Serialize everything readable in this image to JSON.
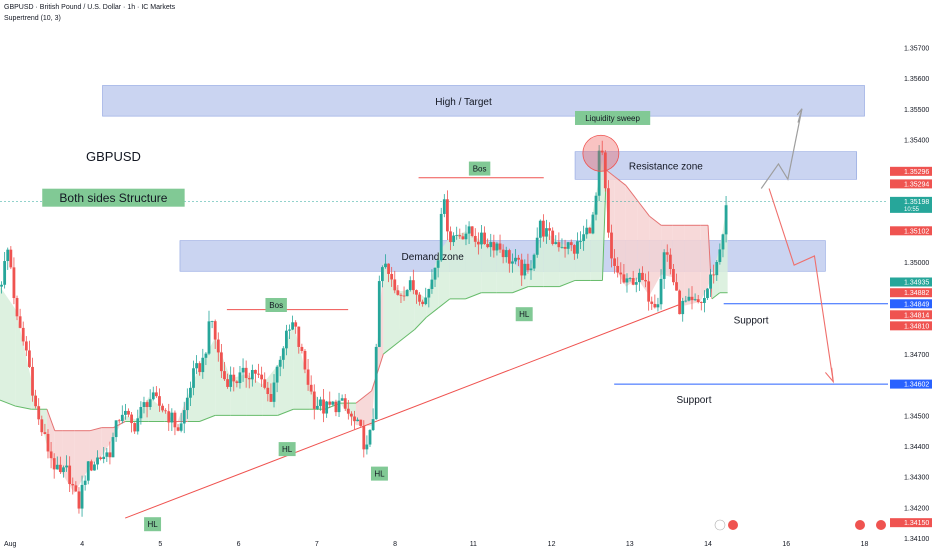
{
  "header": {
    "title": "GBPUSD · British Pound / U.S. Dollar · 1h · IC Markets",
    "indicator": "Supertrend (10, 3)"
  },
  "colors": {
    "up": "#26a69a",
    "down": "#ef5350",
    "zone": "#9fb0e6",
    "trend_up_fill": "#d7eedb",
    "trend_down_fill": "#f6d2d2",
    "label_green": "#81c995",
    "support_line": "#2962ff"
  },
  "chart_data": {
    "type": "candlestick",
    "symbol": "GBPUSD",
    "timeframe": "1h",
    "ylim": [
      1.341,
      1.3577
    ],
    "y_ticks": [
      "1.35700",
      "1.35600",
      "1.35500",
      "1.35400",
      "1.35000",
      "1.34700",
      "1.34500",
      "1.34400",
      "1.34300",
      "1.34200",
      "1.34100"
    ],
    "x_ticks": [
      {
        "label": "Aug",
        "x": 0
      },
      {
        "label": "4",
        "x": 1
      },
      {
        "label": "5",
        "x": 2
      },
      {
        "label": "6",
        "x": 3
      },
      {
        "label": "7",
        "x": 4
      },
      {
        "label": "8",
        "x": 5
      },
      {
        "label": "11",
        "x": 6
      },
      {
        "label": "12",
        "x": 7
      },
      {
        "label": "13",
        "x": 8
      },
      {
        "label": "14",
        "x": 9
      },
      {
        "label": "16",
        "x": 10
      },
      {
        "label": "18",
        "x": 11
      }
    ],
    "x_range": [
      -0.05,
      11.3
    ],
    "last_x": 8.62,
    "anchors": [
      [
        -0.05,
        1.3492
      ],
      [
        0.06,
        1.3505
      ],
      [
        0.17,
        1.348
      ],
      [
        0.3,
        1.347
      ],
      [
        0.42,
        1.345
      ],
      [
        0.55,
        1.344
      ],
      [
        0.7,
        1.343
      ],
      [
        0.82,
        1.3432
      ],
      [
        0.95,
        1.342
      ],
      [
        1.05,
        1.3432
      ],
      [
        1.2,
        1.3436
      ],
      [
        1.35,
        1.3438
      ],
      [
        1.5,
        1.3452
      ],
      [
        1.65,
        1.3446
      ],
      [
        1.85,
        1.3456
      ],
      [
        2.05,
        1.3452
      ],
      [
        2.25,
        1.3445
      ],
      [
        2.4,
        1.3462
      ],
      [
        2.55,
        1.3468
      ],
      [
        2.65,
        1.3482
      ],
      [
        2.8,
        1.3462
      ],
      [
        3.0,
        1.3462
      ],
      [
        3.2,
        1.3465
      ],
      [
        3.4,
        1.3455
      ],
      [
        3.55,
        1.3472
      ],
      [
        3.7,
        1.348
      ],
      [
        3.8,
        1.347
      ],
      [
        3.95,
        1.3455
      ],
      [
        4.1,
        1.3452
      ],
      [
        4.3,
        1.3454
      ],
      [
        4.55,
        1.3445
      ],
      [
        4.65,
        1.3438
      ],
      [
        4.72,
        1.345
      ],
      [
        4.78,
        1.3488
      ],
      [
        4.85,
        1.35
      ],
      [
        5.0,
        1.349
      ],
      [
        5.2,
        1.3492
      ],
      [
        5.4,
        1.3488
      ],
      [
        5.55,
        1.3503
      ],
      [
        5.6,
        1.3522
      ],
      [
        5.7,
        1.3508
      ],
      [
        5.9,
        1.351
      ],
      [
        6.1,
        1.3507
      ],
      [
        6.3,
        1.3506
      ],
      [
        6.5,
        1.35
      ],
      [
        6.7,
        1.3496
      ],
      [
        6.85,
        1.3512
      ],
      [
        7.0,
        1.3507
      ],
      [
        7.15,
        1.3506
      ],
      [
        7.3,
        1.3504
      ],
      [
        7.45,
        1.351
      ],
      [
        7.55,
        1.3515
      ],
      [
        7.62,
        1.3538
      ],
      [
        7.66,
        1.3532
      ],
      [
        7.75,
        1.35
      ],
      [
        7.85,
        1.3497
      ],
      [
        7.95,
        1.3492
      ],
      [
        8.05,
        1.3495
      ],
      [
        8.15,
        1.3494
      ],
      [
        8.25,
        1.3489
      ],
      [
        8.35,
        1.3487
      ],
      [
        8.45,
        1.3505
      ],
      [
        8.55,
        1.3495
      ],
      [
        8.62,
        1.3485
      ],
      [
        8.72,
        1.3486
      ],
      [
        8.85,
        1.3486
      ],
      [
        8.95,
        1.3488
      ],
      [
        9.05,
        1.3496
      ],
      [
        9.12,
        1.35
      ],
      [
        9.2,
        1.3512
      ],
      [
        9.25,
        1.352
      ]
    ],
    "supertrend": [
      [
        -0.05,
        1.3455
      ],
      [
        0.15,
        1.3453
      ],
      [
        0.35,
        1.3452
      ],
      [
        0.55,
        1.3452
      ],
      [
        0.65,
        1.3445
      ],
      [
        0.75,
        1.3445
      ],
      [
        0.9,
        1.3445
      ],
      [
        1.1,
        1.3445
      ],
      [
        1.25,
        1.3446
      ],
      [
        1.4,
        1.3446
      ],
      [
        1.55,
        1.3448
      ],
      [
        1.7,
        1.3448
      ],
      [
        1.85,
        1.3448
      ],
      [
        2.05,
        1.3448
      ],
      [
        2.2,
        1.3448
      ],
      [
        2.35,
        1.3448
      ],
      [
        2.5,
        1.3448
      ],
      [
        2.7,
        1.345
      ],
      [
        2.9,
        1.345
      ],
      [
        3.1,
        1.345
      ],
      [
        3.3,
        1.345
      ],
      [
        3.5,
        1.345
      ],
      [
        3.7,
        1.3452
      ],
      [
        3.9,
        1.3452
      ],
      [
        4.1,
        1.3452
      ],
      [
        4.3,
        1.3454
      ],
      [
        4.5,
        1.3454
      ],
      [
        4.7,
        1.3458
      ],
      [
        4.85,
        1.347
      ],
      [
        5.05,
        1.3474
      ],
      [
        5.25,
        1.3478
      ],
      [
        5.4,
        1.3482
      ],
      [
        5.55,
        1.3485
      ],
      [
        5.7,
        1.3488
      ],
      [
        5.9,
        1.3488
      ],
      [
        6.1,
        1.349
      ],
      [
        6.3,
        1.349
      ],
      [
        6.5,
        1.349
      ],
      [
        6.7,
        1.3492
      ],
      [
        6.9,
        1.3492
      ],
      [
        7.1,
        1.3492
      ],
      [
        7.3,
        1.3494
      ],
      [
        7.5,
        1.3494
      ],
      [
        7.65,
        1.3494
      ],
      [
        7.7,
        1.353
      ],
      [
        7.8,
        1.3528
      ],
      [
        7.95,
        1.3525
      ],
      [
        8.1,
        1.352
      ],
      [
        8.25,
        1.3515
      ],
      [
        8.4,
        1.3512
      ],
      [
        8.55,
        1.3512
      ],
      [
        8.7,
        1.3512
      ],
      [
        8.9,
        1.3512
      ],
      [
        9.0,
        1.3512
      ],
      [
        9.05,
        1.3488
      ],
      [
        9.15,
        1.349
      ],
      [
        9.25,
        1.349
      ]
    ],
    "zones": [
      {
        "label": "High / Target",
        "x0": 1.26,
        "x1": 11.0,
        "y0": 1.35576,
        "y1": 1.35476
      },
      {
        "label": "Resistance zone",
        "x0": 7.3,
        "x1": 10.9,
        "y0": 1.3536,
        "y1": 1.3527
      },
      {
        "label": "Demand zone",
        "x0": 2.25,
        "x1": 10.5,
        "y0": 1.3507,
        "y1": 1.3497
      }
    ],
    "text_labels": [
      {
        "text": "GBPUSD",
        "x": 1.4,
        "y": 1.3533,
        "style": "plain"
      },
      {
        "text": "Both sides Structure",
        "x": 1.4,
        "y": 1.3521,
        "style": "green"
      },
      {
        "text": "Liquidity sweep",
        "x": 7.78,
        "y": 1.3547,
        "style": "green"
      },
      {
        "text": "Bos",
        "x": 6.08,
        "y": 1.35305,
        "style": "green"
      },
      {
        "text": "Bos",
        "x": 3.48,
        "y": 1.3486,
        "style": "green"
      },
      {
        "text": "HL",
        "x": 3.62,
        "y": 1.3439,
        "style": "green"
      },
      {
        "text": "HL",
        "x": 4.8,
        "y": 1.3431,
        "style": "green"
      },
      {
        "text": "HL",
        "x": 6.65,
        "y": 1.3483,
        "style": "green"
      },
      {
        "text": "HL",
        "x": 1.9,
        "y": 1.34145,
        "style": "green"
      },
      {
        "text": "Support",
        "x": 9.55,
        "y": 1.348,
        "style": "plain"
      },
      {
        "text": "Support",
        "x": 8.82,
        "y": 1.3454,
        "style": "plain"
      }
    ],
    "price_labels": [
      {
        "text": "1.35296",
        "y": 1.35296,
        "bg": "#ef5350"
      },
      {
        "text": "1.35294",
        "y": 1.35255,
        "bg": "#ef5350"
      },
      {
        "text": "1.35198",
        "sub": "10:55",
        "y": 1.35198,
        "bg": "#26a69a"
      },
      {
        "text": "1.35102",
        "y": 1.35102,
        "bg": "#ef5350"
      },
      {
        "text": "1.34935",
        "y": 1.34935,
        "bg": "#26a69a"
      },
      {
        "text": "1.34882",
        "y": 1.349,
        "bg": "#ef5350"
      },
      {
        "text": "1.34849",
        "y": 1.34864,
        "bg": "#2962ff"
      },
      {
        "text": "1.34814",
        "y": 1.34828,
        "bg": "#ef5350"
      },
      {
        "text": "1.34810",
        "y": 1.34792,
        "bg": "#ef5350"
      },
      {
        "text": "1.34602",
        "y": 1.34602,
        "bg": "#2962ff"
      },
      {
        "text": "1.34150",
        "y": 1.3415,
        "bg": "#ef5350"
      }
    ]
  }
}
